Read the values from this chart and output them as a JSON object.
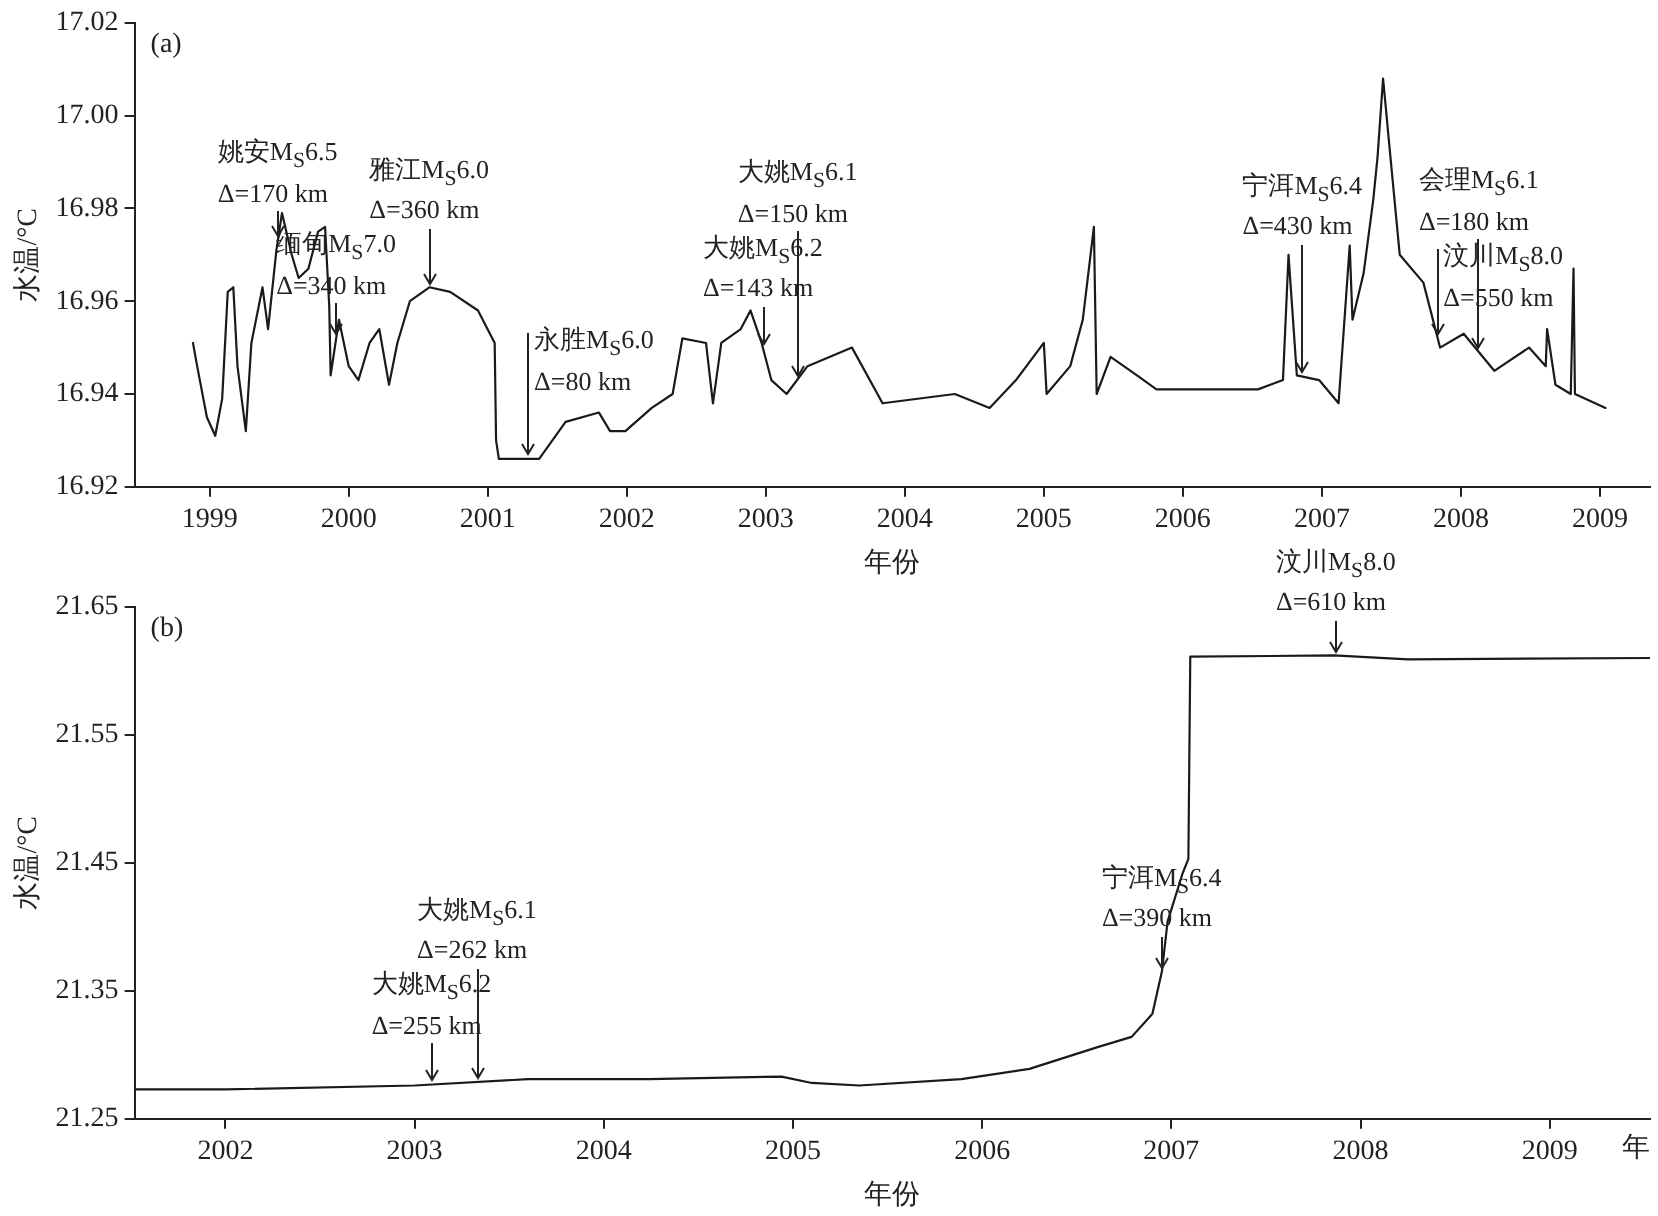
{
  "chart_data": [
    {
      "type": "line",
      "title": "(a)",
      "xlabel": "年份",
      "ylabel": "水温/°C",
      "grid": false,
      "legend": false,
      "marker": "none",
      "line_style": "solid",
      "xlim": [
        1998.96,
        2009.86
      ],
      "ylim": [
        16.92,
        17.02
      ],
      "xticks": [
        {
          "value": 1999.5,
          "label": "1999"
        },
        {
          "value": 2000.5,
          "label": "2000"
        },
        {
          "value": 2001.5,
          "label": "2001"
        },
        {
          "value": 2002.5,
          "label": "2002"
        },
        {
          "value": 2003.5,
          "label": "2003"
        },
        {
          "value": 2004.5,
          "label": "2004"
        },
        {
          "value": 2005.5,
          "label": "2005"
        },
        {
          "value": 2006.5,
          "label": "2006"
        },
        {
          "value": 2007.5,
          "label": "2007"
        },
        {
          "value": 2008.5,
          "label": "2008"
        },
        {
          "value": 2009.5,
          "label": "2009"
        }
      ],
      "yticks": [
        16.92,
        16.94,
        16.96,
        16.98,
        {
          "value": 17,
          "label": "17.00"
        },
        17.02
      ],
      "series": [
        {
          "color": "#1a1a1a",
          "x": [
            1999.38,
            1999.41,
            1999.48,
            1999.54,
            1999.59,
            1999.63,
            1999.67,
            1999.7,
            1999.76,
            1999.8,
            1999.88,
            1999.92,
            1999.98,
            2000.02,
            2000.09,
            2000.14,
            2000.21,
            2000.28,
            2000.33,
            2000.36,
            2000.37,
            2000.43,
            2000.5,
            2000.57,
            2000.65,
            2000.72,
            2000.79,
            2000.85,
            2000.94,
            2001.08,
            2001.23,
            2001.43,
            2001.55,
            2001.56,
            2001.58,
            2001.87,
            2002.06,
            2002.3,
            2002.38,
            2002.49,
            2002.68,
            2002.83,
            2002.9,
            2003.07,
            2003.12,
            2003.18,
            2003.32,
            2003.39,
            2003.47,
            2003.54,
            2003.65,
            2003.8,
            2004.12,
            2004.34,
            2004.86,
            2005.11,
            2005.3,
            2005.5,
            2005.52,
            2005.69,
            2005.78,
            2005.86,
            2005.88,
            2005.98,
            2006.17,
            2006.31,
            2007.04,
            2007.22,
            2007.26,
            2007.32,
            2007.48,
            2007.62,
            2007.7,
            2007.72,
            2007.8,
            2007.87,
            2007.9,
            2007.94,
            2007.99,
            2008.06,
            2008.23,
            2008.35,
            2008.52,
            2008.74,
            2008.99,
            2009.11,
            2009.12,
            2009.18,
            2009.29,
            2009.31,
            2009.32,
            2009.54
          ],
          "values": [
            16.951,
            16.946,
            16.935,
            16.931,
            16.939,
            16.962,
            16.963,
            16.946,
            16.932,
            16.951,
            16.963,
            16.954,
            16.971,
            16.979,
            16.97,
            16.965,
            16.967,
            16.975,
            16.976,
            16.959,
            16.944,
            16.956,
            16.946,
            16.943,
            16.951,
            16.954,
            16.942,
            16.951,
            16.96,
            16.963,
            16.962,
            16.958,
            16.951,
            16.93,
            16.926,
            16.926,
            16.934,
            16.936,
            16.932,
            16.932,
            16.937,
            16.94,
            16.952,
            16.951,
            16.938,
            16.951,
            16.954,
            16.958,
            16.951,
            16.943,
            16.94,
            16.946,
            16.95,
            16.938,
            16.94,
            16.937,
            16.943,
            16.951,
            16.94,
            16.946,
            16.956,
            16.976,
            16.94,
            16.948,
            16.944,
            16.941,
            16.941,
            16.943,
            16.97,
            16.944,
            16.943,
            16.938,
            16.972,
            16.956,
            16.966,
            16.982,
            16.991,
            17.008,
            16.992,
            16.97,
            16.964,
            16.95,
            16.953,
            16.945,
            16.95,
            16.946,
            16.954,
            16.942,
            16.94,
            16.967,
            16.94,
            16.937
          ]
        }
      ],
      "annotations": [
        {
          "text": "姚安M$_{S}$6.5\nΔ=170 km",
          "x": 1999.99,
          "y": 16.973
        },
        {
          "text": "缅甸M$_{S}$7.0\nΔ=340 km",
          "x": 2000.41,
          "y": 16.952
        },
        {
          "text": "雅江M$_{S}$6.0\nΔ=360 km",
          "x": 2001.08,
          "y": 16.963
        },
        {
          "text": "永胜M$_{S}$6.0\nΔ=80 km",
          "x": 2001.79,
          "y": 16.926
        },
        {
          "text": "大姚M$_{S}$6.2\nΔ=143 km",
          "x": 2003.48,
          "y": 16.95
        },
        {
          "text": "大姚M$_{S}$6.1\nΔ=150 km",
          "x": 2003.73,
          "y": 16.943
        },
        {
          "text": "宁洱M$_{S}$6.4\nΔ=430 km",
          "x": 2007.36,
          "y": 16.944
        },
        {
          "text": "汶川M$_{S}$8.0\nΔ=550 km",
          "x": 2008.33,
          "y": 16.952
        },
        {
          "text": "会理M$_{S}$6.1\nΔ=180 km",
          "x": 2008.63,
          "y": 16.949
        }
      ]
    },
    {
      "type": "line",
      "title": "(b)",
      "xlabel": "年份",
      "ylabel": "水温/°C",
      "grid": false,
      "legend": false,
      "marker": "none",
      "line_style": "solid",
      "xlim": [
        2002.02,
        2010.03
      ],
      "ylim": [
        21.25,
        21.65
      ],
      "xticks": [
        {
          "value": 2002.5,
          "label": "2002"
        },
        {
          "value": 2003.5,
          "label": "2003"
        },
        {
          "value": 2004.5,
          "label": "2004"
        },
        {
          "value": 2005.5,
          "label": "2005"
        },
        {
          "value": 2006.5,
          "label": "2006"
        },
        {
          "value": 2007.5,
          "label": "2007"
        },
        {
          "value": 2008.5,
          "label": "2008"
        },
        {
          "value": 2009.5,
          "label": "2009"
        }
      ],
      "yticks": [
        21.25,
        21.35,
        21.45,
        21.55,
        21.65
      ],
      "series": [
        {
          "color": "#1a1a1a",
          "x": [
            2002.02,
            2002.5,
            2003.5,
            2004.1,
            2004.74,
            2005.44,
            2005.6,
            2005.85,
            2006.39,
            2006.75,
            2007.11,
            2007.29,
            2007.4,
            2007.45,
            2007.48,
            2007.56,
            2007.59,
            2007.6,
            2008.36,
            2008.75,
            2010.03
          ],
          "values": [
            21.273,
            21.273,
            21.276,
            21.281,
            21.281,
            21.283,
            21.278,
            21.276,
            21.281,
            21.289,
            21.306,
            21.314,
            21.332,
            21.365,
            21.404,
            21.442,
            21.453,
            21.611,
            21.612,
            21.609,
            21.61
          ]
        }
      ],
      "annotations": [
        {
          "text": "大姚M$_{S}$6.2\nΔ=255 km",
          "x": 2003.59,
          "y": 21.277
        },
        {
          "text": "大姚M$_{S}$6.1\nΔ=262 km",
          "x": 2003.83,
          "y": 21.279
        },
        {
          "text": "宁洱M$_{S}$6.4\nΔ=390 km",
          "x": 2007.45,
          "y": 21.365
        },
        {
          "text": "汶川M$_{S}$8.0\nΔ=610 km",
          "x": 2008.37,
          "y": 21.612
        },
        "年"
      ]
    }
  ]
}
